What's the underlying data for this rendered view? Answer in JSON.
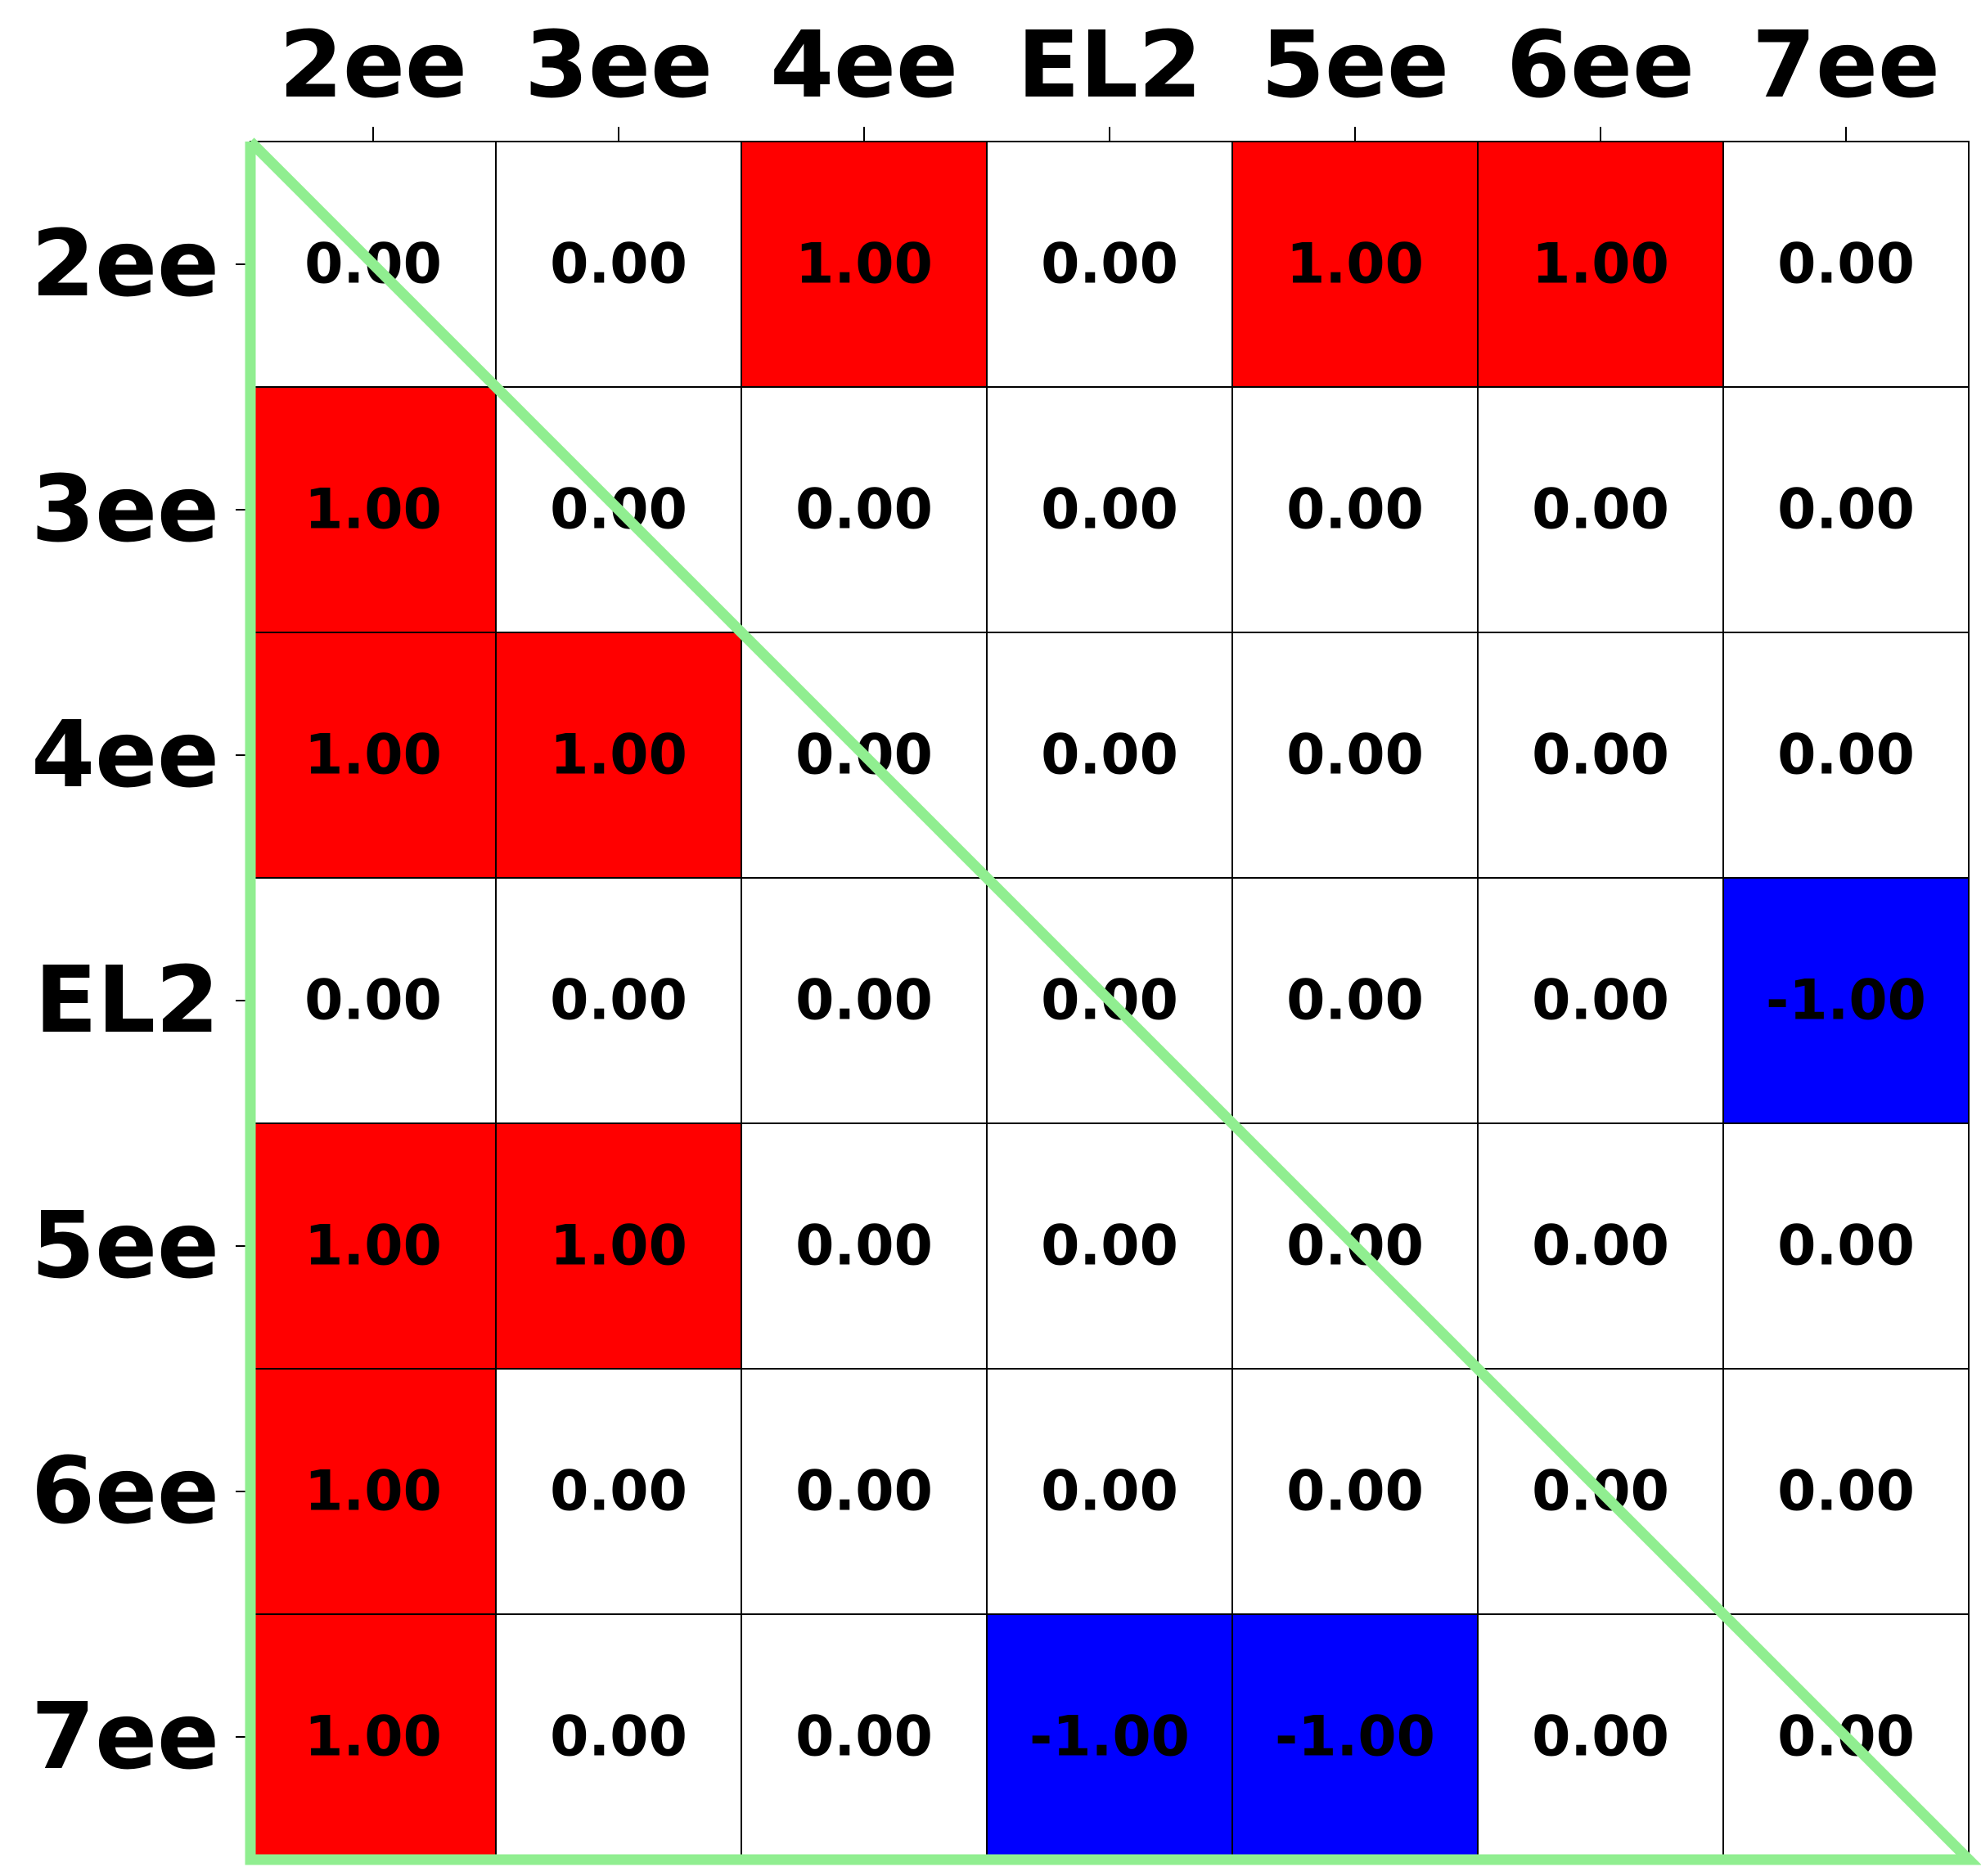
{
  "chart_data": {
    "type": "heatmap",
    "title": "",
    "xlabel": "",
    "ylabel": "",
    "x_categories": [
      "2ee",
      "3ee",
      "4ee",
      "EL2",
      "5ee",
      "6ee",
      "7ee"
    ],
    "y_categories": [
      "2ee",
      "3ee",
      "4ee",
      "EL2",
      "5ee",
      "6ee",
      "7ee"
    ],
    "x_axis_position": "top",
    "values": [
      [
        0,
        0,
        1,
        0,
        1,
        1,
        0
      ],
      [
        1,
        0,
        0,
        0,
        0,
        0,
        0
      ],
      [
        1,
        1,
        0,
        0,
        0,
        0,
        0
      ],
      [
        0,
        0,
        0,
        0,
        0,
        0,
        -1
      ],
      [
        1,
        1,
        0,
        0,
        0,
        0,
        0
      ],
      [
        1,
        0,
        0,
        0,
        0,
        0,
        0
      ],
      [
        1,
        0,
        0,
        -1,
        -1,
        0,
        0
      ]
    ],
    "cell_labels": [
      [
        "0.00",
        "0.00",
        "1.00",
        "0.00",
        "1.00",
        "1.00",
        "0.00"
      ],
      [
        "1.00",
        "0.00",
        "0.00",
        "0.00",
        "0.00",
        "0.00",
        "0.00"
      ],
      [
        "1.00",
        "1.00",
        "0.00",
        "0.00",
        "0.00",
        "0.00",
        "0.00"
      ],
      [
        "0.00",
        "0.00",
        "0.00",
        "0.00",
        "0.00",
        "0.00",
        "-1.00"
      ],
      [
        "1.00",
        "1.00",
        "0.00",
        "0.00",
        "0.00",
        "0.00",
        "0.00"
      ],
      [
        "1.00",
        "0.00",
        "0.00",
        "0.00",
        "0.00",
        "0.00",
        "0.00"
      ],
      [
        "1.00",
        "0.00",
        "0.00",
        "-1.00",
        "-1.00",
        "0.00",
        "0.00"
      ]
    ],
    "color_map": {
      "positive": "#ff0000",
      "zero": "#ffffff",
      "negative": "#0000ff"
    },
    "grid": true,
    "grid_color": "#000000",
    "triangle_overlay": {
      "shape": "lower-left triangle",
      "color": "#90ee90"
    }
  }
}
